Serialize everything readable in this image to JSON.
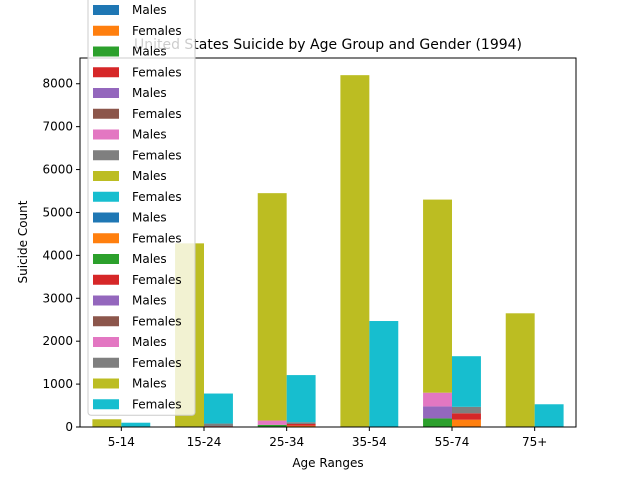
{
  "chart_data": {
    "type": "bar",
    "title": "United States Suicide by Age Group and Gender (1994)",
    "xlabel": "Age Ranges",
    "ylabel": "Suicide Count",
    "categories": [
      "5-14",
      "15-24",
      "25-34",
      "35-54",
      "55-74",
      "75+"
    ],
    "ylim": [
      0,
      8600
    ],
    "yticks": [
      0,
      1000,
      2000,
      3000,
      4000,
      5000,
      6000,
      7000,
      8000
    ],
    "grid": false,
    "legend_position": "upper-left",
    "colors": [
      "#1f77b4",
      "#ff7f0e",
      "#2ca02c",
      "#d62728",
      "#9467bd",
      "#8c564b",
      "#e377c2",
      "#7f7f7f",
      "#bcbd22",
      "#17becf"
    ],
    "series": [
      {
        "name": "Males",
        "group": "male",
        "values": [
          0,
          0,
          0,
          0,
          0,
          0
        ]
      },
      {
        "name": "Females",
        "group": "female",
        "values": [
          0,
          0,
          30,
          0,
          170,
          0
        ]
      },
      {
        "name": "Males",
        "group": "male",
        "values": [
          0,
          0,
          0,
          0,
          0,
          0
        ]
      },
      {
        "name": "Females",
        "group": "female",
        "values": [
          0,
          20,
          40,
          0,
          150,
          0
        ]
      },
      {
        "name": "Males",
        "group": "male",
        "values": [
          0,
          0,
          0,
          0,
          0,
          0
        ]
      },
      {
        "name": "Females",
        "group": "female",
        "values": [
          0,
          0,
          0,
          0,
          0,
          0
        ]
      },
      {
        "name": "Males",
        "group": "male",
        "values": [
          0,
          0,
          0,
          0,
          0,
          0
        ]
      },
      {
        "name": "Females",
        "group": "female",
        "values": [
          0,
          0,
          0,
          0,
          0,
          0
        ]
      },
      {
        "name": "Males",
        "group": "male",
        "values": [
          0,
          0,
          0,
          0,
          0,
          0
        ]
      },
      {
        "name": "Females",
        "group": "female",
        "values": [
          0,
          0,
          0,
          0,
          0,
          0
        ]
      },
      {
        "name": "Males",
        "group": "male",
        "values": [
          0,
          0,
          0,
          0,
          0,
          0
        ]
      },
      {
        "name": "Females",
        "group": "female",
        "values": [
          0,
          0,
          0,
          0,
          0,
          0
        ]
      },
      {
        "name": "Males",
        "group": "male",
        "values": [
          0,
          0,
          50,
          0,
          200,
          0
        ]
      },
      {
        "name": "Females",
        "group": "female",
        "values": [
          0,
          0,
          0,
          0,
          0,
          0
        ]
      },
      {
        "name": "Males",
        "group": "male",
        "values": [
          0,
          0,
          0,
          0,
          280,
          0
        ]
      },
      {
        "name": "Females",
        "group": "female",
        "values": [
          0,
          0,
          0,
          0,
          0,
          0
        ]
      },
      {
        "name": "Males",
        "group": "male",
        "values": [
          0,
          0,
          100,
          0,
          320,
          0
        ]
      },
      {
        "name": "Females",
        "group": "female",
        "values": [
          0,
          60,
          40,
          0,
          150,
          0
        ]
      },
      {
        "name": "Males",
        "group": "male",
        "values": [
          180,
          4280,
          5300,
          8200,
          4500,
          2650
        ]
      },
      {
        "name": "Females",
        "group": "female",
        "values": [
          100,
          700,
          1100,
          2470,
          1180,
          530
        ]
      }
    ]
  }
}
